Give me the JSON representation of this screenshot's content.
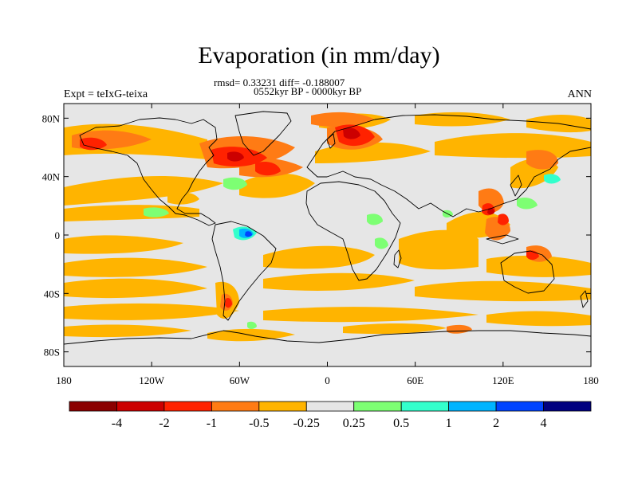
{
  "title": "Evaporation (in mm/day)",
  "stats": "rmsd= 0.33231 diff= -0.188007",
  "period": "0552kyr BP - 0000kyr BP",
  "experiment": "Expt = teIxG-teixa",
  "season": "ANN",
  "lat_ticks": [
    "80N",
    "40N",
    "0",
    "40S",
    "80S"
  ],
  "lat_values": [
    80,
    40,
    0,
    -40,
    -80
  ],
  "lon_ticks": [
    "180",
    "120W",
    "60W",
    "0",
    "60E",
    "120E",
    "180"
  ],
  "lon_values": [
    -180,
    -120,
    -60,
    0,
    60,
    120,
    180
  ],
  "colorbar": {
    "labels": [
      "-4",
      "-2",
      "-1",
      "-0.5",
      "-0.25",
      "0.25",
      "0.5",
      "1",
      "2",
      "4"
    ],
    "colors": [
      "#8b0000",
      "#cc0000",
      "#ff2200",
      "#ff7b14",
      "#ffb400",
      "#e6e6e6",
      "#7dff73",
      "#33ffcc",
      "#00b4ff",
      "#0044ff",
      "#000080"
    ]
  }
}
